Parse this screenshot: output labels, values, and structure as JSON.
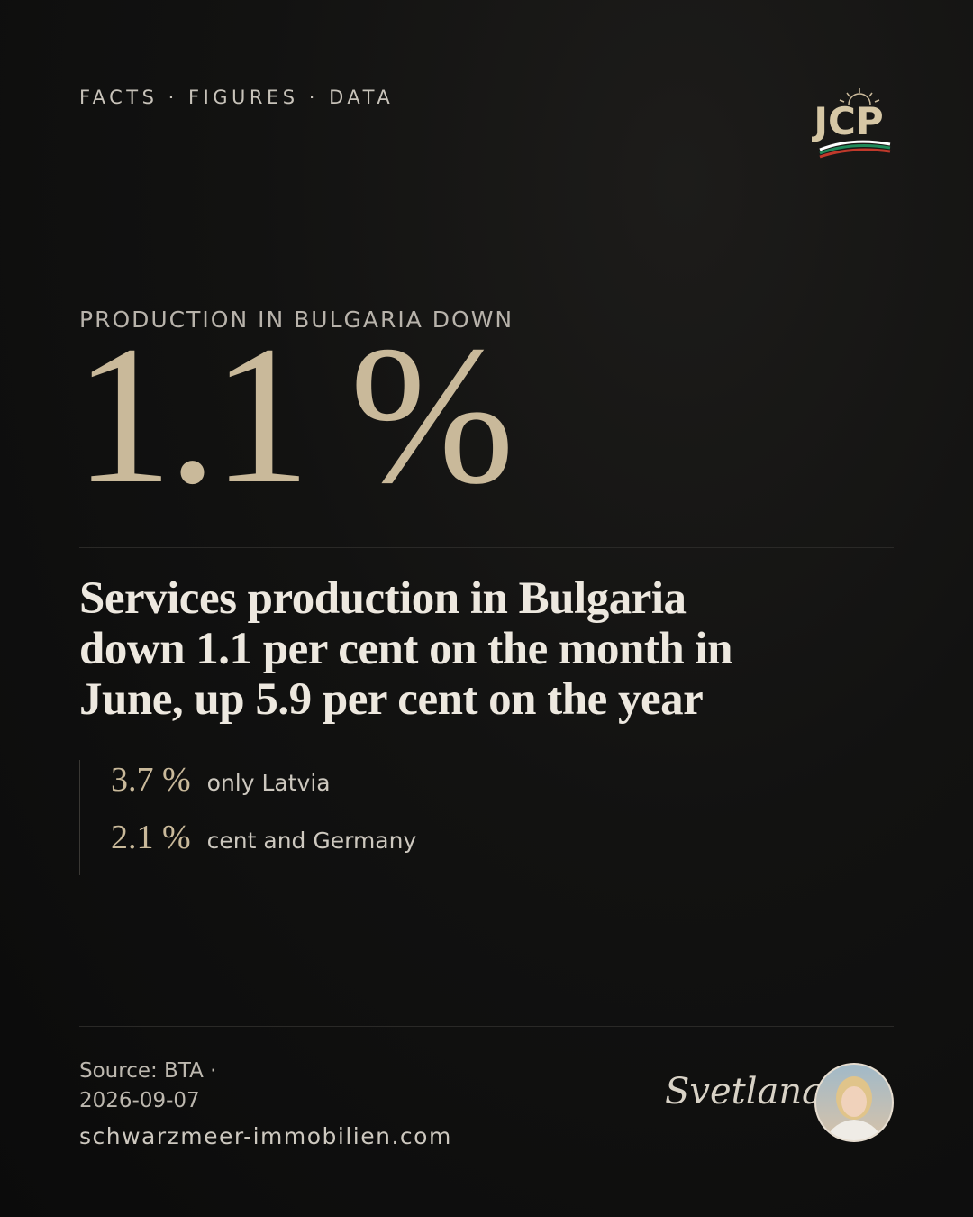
{
  "header": {
    "kicker": "FACTS · FIGURES · DATA",
    "logo": "JCP"
  },
  "hero": {
    "label": "PRODUCTION IN BULGARIA DOWN",
    "figure": "1.1 %"
  },
  "headline": {
    "lines": [
      "Services production in Bulgaria",
      "down 1.1 per cent on the month in",
      "June, up 5.9 per cent on the year"
    ]
  },
  "stats": [
    {
      "value": "3.7 %",
      "text": "only Latvia"
    },
    {
      "value": "2.1 %",
      "text": "cent and Germany"
    }
  ],
  "footer": {
    "source": "Source: BTA ·",
    "date": "2026-09-07",
    "website": "schwarzmeer-immobilien.com",
    "signature": "Svetlana"
  }
}
